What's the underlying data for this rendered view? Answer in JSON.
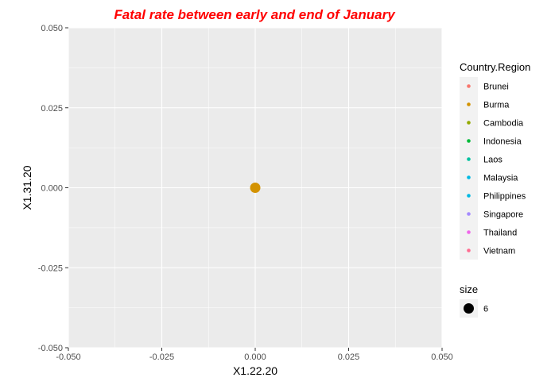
{
  "chart_data": {
    "type": "scatter",
    "title": "Fatal rate between early and end of January",
    "title_color": "#ff0000",
    "xlabel": "X1.22.20",
    "ylabel": "X1.31.20",
    "xlim": [
      -0.05,
      0.05
    ],
    "ylim": [
      -0.05,
      0.05
    ],
    "x_ticks": [
      -0.05,
      -0.025,
      0,
      0.025,
      0.05
    ],
    "x_tick_labels": [
      "-0.050",
      "-0.025",
      "0.000",
      "0.025",
      "0.050"
    ],
    "y_ticks": [
      -0.05,
      -0.025,
      0,
      0.025,
      0.05
    ],
    "y_tick_labels": [
      "-0.050",
      "-0.025",
      "0.000",
      "0.025",
      "0.050"
    ],
    "grid": true,
    "panel_background": "#ebebeb",
    "grid_color": "#ffffff",
    "points": [
      {
        "x": 0,
        "y": 0,
        "series": "Burma",
        "size": 6,
        "color": "#d39200"
      }
    ],
    "legend": {
      "placement": "right",
      "color_title": "Country.Region",
      "entries": [
        {
          "label": "Brunei",
          "color": "#f8766d"
        },
        {
          "label": "Burma",
          "color": "#d39200"
        },
        {
          "label": "Cambodia",
          "color": "#93aa00"
        },
        {
          "label": "Indonesia",
          "color": "#00ba38"
        },
        {
          "label": "Laos",
          "color": "#00c19f"
        },
        {
          "label": "Malaysia",
          "color": "#00b9e3"
        },
        {
          "label": "Philippines",
          "color": "#00b9e3"
        },
        {
          "label": "Singapore",
          "color": "#a58aff"
        },
        {
          "label": "Thailand",
          "color": "#f066ea"
        },
        {
          "label": "Vietnam",
          "color": "#ff6c91"
        }
      ],
      "size_title": "size",
      "size_entries": [
        {
          "label": "6",
          "color": "#000000"
        }
      ]
    }
  }
}
